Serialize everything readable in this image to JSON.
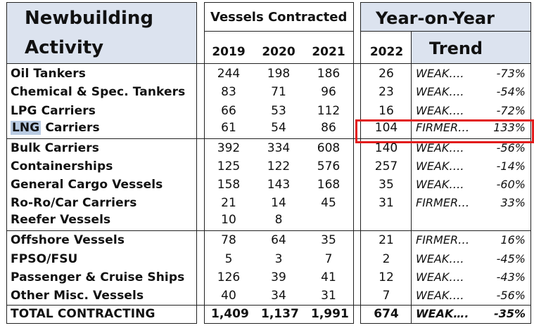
{
  "header": {
    "title_line1": "Newbuilding",
    "title_line2": "Activity",
    "vessels_contracted": "Vessels Contracted",
    "yoy_line1": "Year-on-Year",
    "yoy_trend": "Trend",
    "years": [
      "2019",
      "2020",
      "2021"
    ],
    "year_2022": "2022"
  },
  "rows": [
    {
      "label": "Oil Tankers",
      "y2019": "244",
      "y2020": "198",
      "y2021": "186",
      "y2022": "26",
      "trend": "WEAK….",
      "pct": "-73%"
    },
    {
      "label": "Chemical & Spec. Tankers",
      "y2019": "83",
      "y2020": "71",
      "y2021": "96",
      "y2022": "23",
      "trend": "WEAK….",
      "pct": "-54%"
    },
    {
      "label": "LPG Carriers",
      "y2019": "66",
      "y2020": "53",
      "y2021": "112",
      "y2022": "16",
      "trend": "WEAK….",
      "pct": "-72%"
    },
    {
      "label_highlight": "LNG",
      "label_rest": " Carriers",
      "y2019": "61",
      "y2020": "54",
      "y2021": "86",
      "y2022": "104",
      "trend": "FIRMER…",
      "pct": "133%"
    },
    {
      "label": "Bulk Carriers",
      "y2019": "392",
      "y2020": "334",
      "y2021": "608",
      "y2022": "140",
      "trend": "WEAK….",
      "pct": "-56%"
    },
    {
      "label": "Containerships",
      "y2019": "125",
      "y2020": "122",
      "y2021": "576",
      "y2022": "257",
      "trend": "WEAK….",
      "pct": "-14%"
    },
    {
      "label": "General Cargo Vessels",
      "y2019": "158",
      "y2020": "143",
      "y2021": "168",
      "y2022": "35",
      "trend": "WEAK….",
      "pct": "-60%"
    },
    {
      "label": "Ro-Ro/Car Carriers",
      "y2019": "21",
      "y2020": "14",
      "y2021": "45",
      "y2022": "31",
      "trend": "FIRMER…",
      "pct": "33%"
    },
    {
      "label": "Reefer Vessels",
      "y2019": "10",
      "y2020": "8",
      "y2021": "",
      "y2022": "",
      "trend": "",
      "pct": ""
    },
    {
      "label": "Offshore Vessels",
      "y2019": "78",
      "y2020": "64",
      "y2021": "35",
      "y2022": "21",
      "trend": "FIRMER…",
      "pct": "16%"
    },
    {
      "label": "FPSO/FSU",
      "y2019": "5",
      "y2020": "3",
      "y2021": "7",
      "y2022": "2",
      "trend": "WEAK….",
      "pct": "-45%"
    },
    {
      "label": "Passenger & Cruise Ships",
      "y2019": "126",
      "y2020": "39",
      "y2021": "41",
      "y2022": "12",
      "trend": "WEAK….",
      "pct": "-43%"
    },
    {
      "label": "Other Misc. Vessels",
      "y2019": "40",
      "y2020": "34",
      "y2021": "31",
      "y2022": "7",
      "trend": "WEAK….",
      "pct": "-56%"
    }
  ],
  "total": {
    "label": "TOTAL CONTRACTING",
    "y2019": "1,409",
    "y2020": "1,137",
    "y2021": "1,991",
    "y2022": "674",
    "trend": "WEAK….",
    "pct": "-35%"
  },
  "colors": {
    "header_bg": "#dce3ef",
    "highlight_box": "#e21b1b",
    "lng_highlight": "#b9cbe2"
  }
}
